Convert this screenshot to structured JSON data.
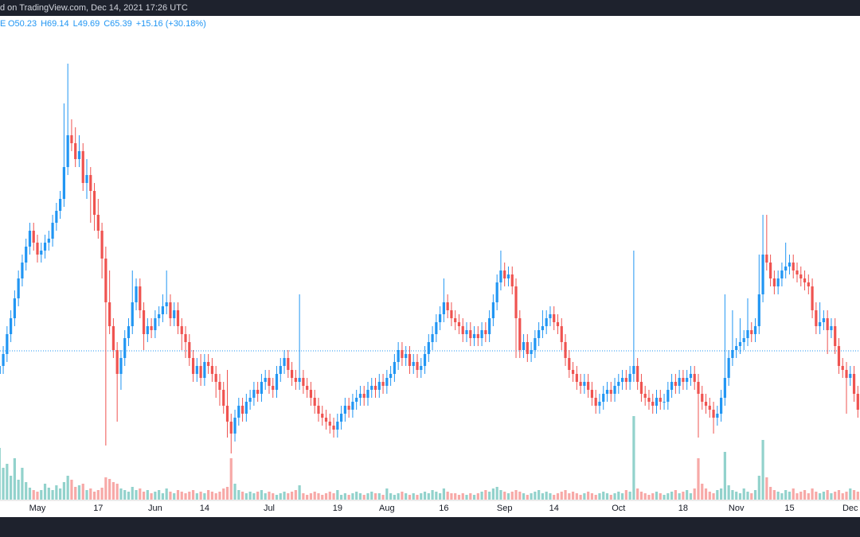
{
  "header": {
    "source": "d on TradingView.com, Dec 14, 2021 17:26 UTC",
    "symbol": "E",
    "ohlc": [
      "O50.23",
      "H69.14",
      "L49.69",
      "C65.39",
      "+15.16 (+30.18%)"
    ]
  },
  "chart_data": {
    "type": "candlestick",
    "x": [
      "2021-04-21",
      "2021-04-22",
      "2021-04-23",
      "2021-04-24",
      "2021-04-25",
      "2021-04-26",
      "2021-04-27",
      "2021-04-28",
      "2021-04-29",
      "2021-04-30",
      "2021-05-01",
      "2021-05-02",
      "2021-05-03",
      "2021-05-04",
      "2021-05-05",
      "2021-05-06",
      "2021-05-07",
      "2021-05-08",
      "2021-05-09",
      "2021-05-10",
      "2021-05-11",
      "2021-05-12",
      "2021-05-13",
      "2021-05-14",
      "2021-05-15",
      "2021-05-16",
      "2021-05-17",
      "2021-05-18",
      "2021-05-19",
      "2021-05-20",
      "2021-05-21",
      "2021-05-22",
      "2021-05-23",
      "2021-05-24",
      "2021-05-25",
      "2021-05-26",
      "2021-05-27",
      "2021-05-28",
      "2021-05-29",
      "2021-05-30",
      "2021-05-31",
      "2021-06-01",
      "2021-06-02",
      "2021-06-03",
      "2021-06-04",
      "2021-06-05",
      "2021-06-06",
      "2021-06-07",
      "2021-06-08",
      "2021-06-09",
      "2021-06-10",
      "2021-06-11",
      "2021-06-12",
      "2021-06-13",
      "2021-06-14",
      "2021-06-15",
      "2021-06-16",
      "2021-06-17",
      "2021-06-18",
      "2021-06-19",
      "2021-06-20",
      "2021-06-21",
      "2021-06-22",
      "2021-06-23",
      "2021-06-24",
      "2021-06-25",
      "2021-06-26",
      "2021-06-27",
      "2021-06-28",
      "2021-06-29",
      "2021-06-30",
      "2021-07-01",
      "2021-07-02",
      "2021-07-03",
      "2021-07-04",
      "2021-07-05",
      "2021-07-06",
      "2021-07-07",
      "2021-07-08",
      "2021-07-09",
      "2021-07-10",
      "2021-07-11",
      "2021-07-12",
      "2021-07-13",
      "2021-07-14",
      "2021-07-15",
      "2021-07-16",
      "2021-07-17",
      "2021-07-18",
      "2021-07-19",
      "2021-07-20",
      "2021-07-21",
      "2021-07-22",
      "2021-07-23",
      "2021-07-24",
      "2021-07-25",
      "2021-07-26",
      "2021-07-27",
      "2021-07-28",
      "2021-07-29",
      "2021-07-30",
      "2021-07-31",
      "2021-08-01",
      "2021-08-02",
      "2021-08-03",
      "2021-08-04",
      "2021-08-05",
      "2021-08-06",
      "2021-08-07",
      "2021-08-08",
      "2021-08-09",
      "2021-08-10",
      "2021-08-11",
      "2021-08-12",
      "2021-08-13",
      "2021-08-14",
      "2021-08-15",
      "2021-08-16",
      "2021-08-17",
      "2021-08-18",
      "2021-08-19",
      "2021-08-20",
      "2021-08-21",
      "2021-08-22",
      "2021-08-23",
      "2021-08-24",
      "2021-08-25",
      "2021-08-26",
      "2021-08-27",
      "2021-08-28",
      "2021-08-29",
      "2021-08-30",
      "2021-08-31",
      "2021-09-01",
      "2021-09-02",
      "2021-09-03",
      "2021-09-04",
      "2021-09-05",
      "2021-09-06",
      "2021-09-07",
      "2021-09-08",
      "2021-09-09",
      "2021-09-10",
      "2021-09-11",
      "2021-09-12",
      "2021-09-13",
      "2021-09-14",
      "2021-09-15",
      "2021-09-16",
      "2021-09-17",
      "2021-09-18",
      "2021-09-19",
      "2021-09-20",
      "2021-09-21",
      "2021-09-22",
      "2021-09-23",
      "2021-09-24",
      "2021-09-25",
      "2021-09-26",
      "2021-09-27",
      "2021-09-28",
      "2021-09-29",
      "2021-09-30",
      "2021-10-01",
      "2021-10-02",
      "2021-10-03",
      "2021-10-04",
      "2021-10-05",
      "2021-10-06",
      "2021-10-07",
      "2021-10-08",
      "2021-10-09",
      "2021-10-10",
      "2021-10-11",
      "2021-10-12",
      "2021-10-13",
      "2021-10-14",
      "2021-10-15",
      "2021-10-16",
      "2021-10-17",
      "2021-10-18",
      "2021-10-19",
      "2021-10-20",
      "2021-10-21",
      "2021-10-22",
      "2021-10-23",
      "2021-10-24",
      "2021-10-25",
      "2021-10-26",
      "2021-10-27",
      "2021-10-28",
      "2021-10-29",
      "2021-10-30",
      "2021-10-31",
      "2021-11-01",
      "2021-11-02",
      "2021-11-03",
      "2021-11-04",
      "2021-11-05",
      "2021-11-06",
      "2021-11-07",
      "2021-11-08",
      "2021-11-09",
      "2021-11-10",
      "2021-11-11",
      "2021-11-12",
      "2021-11-13",
      "2021-11-14",
      "2021-11-15",
      "2021-11-16",
      "2021-11-17",
      "2021-11-18",
      "2021-11-19",
      "2021-11-20",
      "2021-11-21",
      "2021-11-22",
      "2021-11-23",
      "2021-11-24",
      "2021-11-25",
      "2021-11-26",
      "2021-11-27",
      "2021-11-28",
      "2021-11-29",
      "2021-11-30",
      "2021-12-01",
      "2021-12-02",
      "2021-12-03"
    ],
    "open": [
      26,
      28,
      31,
      36,
      40,
      45,
      50,
      54,
      58,
      62,
      59,
      56,
      57,
      59,
      60,
      64,
      67,
      70,
      78,
      86,
      84,
      80,
      82,
      74,
      76,
      72,
      66,
      62,
      55,
      44,
      38,
      32,
      26,
      30,
      35,
      38,
      44,
      48,
      42,
      36,
      38,
      37,
      40,
      41,
      43,
      44,
      40,
      42,
      38,
      36,
      34,
      30,
      26,
      28,
      25,
      29,
      28,
      26,
      24,
      22,
      18,
      14,
      11,
      15,
      18,
      16,
      19,
      20,
      22,
      21,
      24,
      25,
      23,
      22,
      26,
      28,
      30,
      27,
      25,
      24,
      25,
      23,
      22,
      20,
      18,
      16,
      15,
      14,
      13,
      12,
      14,
      16,
      18,
      17,
      19,
      20,
      21,
      20,
      22,
      23,
      22,
      24,
      23,
      25,
      26,
      29,
      32,
      30,
      31,
      28,
      29,
      27,
      28,
      31,
      34,
      36,
      39,
      41,
      44,
      42,
      40,
      39,
      38,
      36,
      37,
      35,
      36,
      35,
      37,
      36,
      40,
      44,
      49,
      52,
      50,
      51,
      48,
      40,
      32,
      34,
      31,
      32,
      35,
      37,
      38,
      40,
      41,
      39,
      38,
      34,
      30,
      27,
      26,
      24,
      23,
      24,
      22,
      20,
      18,
      19,
      21,
      22,
      21,
      23,
      24,
      25,
      24,
      26,
      28,
      24,
      21,
      20,
      19,
      18,
      20,
      19,
      19,
      22,
      24,
      23,
      25,
      24,
      25,
      26,
      24,
      21,
      19,
      18,
      17,
      15,
      16,
      20,
      25,
      30,
      32,
      33,
      34,
      35,
      37,
      36,
      38,
      46,
      56,
      54,
      50,
      48,
      50,
      52,
      53,
      54,
      52,
      51,
      50,
      49,
      48,
      42,
      38,
      39,
      40,
      37,
      38,
      33,
      28,
      27,
      25,
      26,
      21
    ],
    "high": [
      30,
      33,
      38,
      42,
      47,
      52,
      56,
      60,
      64,
      64,
      61,
      59,
      61,
      62,
      66,
      69,
      72,
      94,
      104,
      90,
      88,
      86,
      84,
      80,
      78,
      74,
      70,
      64,
      58,
      52,
      40,
      34,
      32,
      37,
      40,
      52,
      50,
      50,
      44,
      40,
      40,
      42,
      43,
      46,
      52,
      46,
      44,
      44,
      40,
      38,
      36,
      32,
      30,
      31,
      31,
      31,
      30,
      28,
      26,
      24,
      27,
      16,
      17,
      20,
      20,
      21,
      22,
      24,
      24,
      26,
      27,
      27,
      25,
      28,
      30,
      32,
      32,
      29,
      27,
      46,
      27,
      25,
      24,
      22,
      20,
      18,
      17,
      16,
      15,
      16,
      18,
      20,
      20,
      21,
      22,
      23,
      23,
      24,
      25,
      25,
      26,
      26,
      27,
      28,
      31,
      34,
      34,
      33,
      33,
      31,
      31,
      30,
      33,
      36,
      38,
      41,
      43,
      50,
      46,
      44,
      42,
      41,
      40,
      39,
      39,
      38,
      38,
      39,
      39,
      42,
      46,
      51,
      57,
      54,
      53,
      53,
      50,
      42,
      36,
      36,
      34,
      37,
      39,
      42,
      42,
      43,
      43,
      41,
      40,
      36,
      32,
      29,
      28,
      26,
      26,
      26,
      24,
      22,
      21,
      23,
      24,
      24,
      25,
      26,
      27,
      27,
      28,
      57,
      30,
      26,
      23,
      22,
      21,
      22,
      22,
      21,
      24,
      26,
      26,
      27,
      27,
      27,
      28,
      28,
      26,
      23,
      21,
      20,
      19,
      18,
      22,
      46,
      32,
      42,
      35,
      40,
      37,
      45,
      39,
      40,
      56,
      66,
      66,
      56,
      52,
      52,
      54,
      59,
      56,
      56,
      54,
      53,
      52,
      51,
      50,
      44,
      44,
      42,
      42,
      40,
      40,
      35,
      30,
      29,
      28,
      28,
      23
    ],
    "low": [
      24,
      26,
      29,
      34,
      38,
      43,
      48,
      52,
      56,
      57,
      54,
      54,
      55,
      57,
      58,
      62,
      65,
      68,
      76,
      82,
      78,
      78,
      72,
      70,
      64,
      62,
      60,
      50,
      8,
      36,
      30,
      14,
      22,
      28,
      33,
      36,
      42,
      40,
      32,
      34,
      35,
      35,
      38,
      39,
      41,
      38,
      38,
      36,
      32,
      30,
      28,
      24,
      24,
      23,
      23,
      26,
      24,
      20,
      18,
      16,
      10,
      6,
      9,
      13,
      14,
      14,
      17,
      18,
      19,
      19,
      22,
      21,
      20,
      20,
      24,
      26,
      25,
      23,
      22,
      22,
      21,
      20,
      18,
      16,
      14,
      13,
      12,
      11,
      10,
      10,
      12,
      14,
      15,
      15,
      17,
      18,
      18,
      18,
      20,
      20,
      20,
      21,
      21,
      23,
      24,
      27,
      28,
      28,
      26,
      26,
      25,
      25,
      26,
      29,
      32,
      34,
      37,
      39,
      40,
      38,
      37,
      36,
      34,
      34,
      33,
      33,
      33,
      33,
      34,
      34,
      38,
      42,
      47,
      48,
      48,
      46,
      30,
      30,
      30,
      29,
      29,
      30,
      33,
      35,
      36,
      38,
      37,
      36,
      32,
      28,
      25,
      24,
      22,
      21,
      21,
      20,
      18,
      16,
      16,
      17,
      19,
      19,
      19,
      21,
      22,
      22,
      22,
      24,
      22,
      19,
      18,
      17,
      16,
      16,
      17,
      17,
      17,
      20,
      21,
      21,
      22,
      22,
      23,
      22,
      10,
      17,
      16,
      15,
      11,
      13,
      14,
      18,
      23,
      28,
      30,
      31,
      32,
      33,
      34,
      34,
      36,
      44,
      52,
      48,
      46,
      46,
      48,
      50,
      51,
      50,
      49,
      48,
      47,
      46,
      40,
      36,
      36,
      37,
      31,
      35,
      31,
      26,
      25,
      16,
      23,
      19,
      15
    ],
    "close": [
      28,
      31,
      36,
      40,
      45,
      50,
      54,
      58,
      62,
      59,
      56,
      57,
      59,
      60,
      64,
      67,
      70,
      78,
      86,
      84,
      80,
      82,
      74,
      76,
      72,
      66,
      62,
      55,
      44,
      38,
      32,
      26,
      30,
      35,
      38,
      44,
      48,
      42,
      36,
      38,
      37,
      40,
      41,
      43,
      44,
      40,
      42,
      38,
      36,
      34,
      30,
      26,
      28,
      25,
      29,
      28,
      26,
      24,
      22,
      18,
      14,
      11,
      15,
      18,
      16,
      19,
      20,
      22,
      21,
      24,
      25,
      23,
      22,
      26,
      28,
      30,
      27,
      25,
      24,
      25,
      23,
      22,
      20,
      18,
      16,
      15,
      14,
      13,
      12,
      14,
      16,
      18,
      17,
      19,
      20,
      21,
      20,
      22,
      23,
      22,
      24,
      23,
      25,
      26,
      29,
      32,
      30,
      31,
      28,
      29,
      27,
      28,
      31,
      34,
      36,
      39,
      41,
      44,
      42,
      40,
      39,
      38,
      36,
      37,
      35,
      36,
      35,
      37,
      36,
      40,
      44,
      49,
      52,
      50,
      51,
      48,
      40,
      32,
      34,
      31,
      32,
      35,
      37,
      38,
      40,
      41,
      39,
      38,
      34,
      30,
      27,
      26,
      24,
      23,
      24,
      22,
      20,
      18,
      19,
      21,
      22,
      21,
      23,
      24,
      25,
      24,
      26,
      28,
      24,
      21,
      20,
      19,
      18,
      20,
      19,
      19,
      22,
      24,
      23,
      25,
      24,
      25,
      26,
      24,
      21,
      19,
      18,
      17,
      15,
      16,
      20,
      25,
      30,
      32,
      33,
      34,
      35,
      37,
      36,
      38,
      46,
      56,
      54,
      50,
      48,
      50,
      52,
      53,
      54,
      52,
      51,
      50,
      49,
      48,
      42,
      38,
      39,
      40,
      37,
      38,
      33,
      28,
      27,
      25,
      26,
      21,
      17
    ],
    "volume": [
      65,
      40,
      45,
      30,
      52,
      25,
      40,
      22,
      15,
      12,
      10,
      12,
      20,
      15,
      12,
      18,
      14,
      22,
      30,
      25,
      16,
      18,
      20,
      12,
      14,
      10,
      12,
      15,
      28,
      26,
      22,
      20,
      14,
      12,
      10,
      16,
      12,
      14,
      10,
      12,
      8,
      10,
      12,
      8,
      14,
      10,
      8,
      12,
      10,
      8,
      10,
      12,
      8,
      10,
      8,
      12,
      10,
      8,
      10,
      14,
      16,
      52,
      20,
      12,
      10,
      8,
      10,
      8,
      10,
      12,
      8,
      10,
      8,
      6,
      8,
      10,
      8,
      10,
      12,
      18,
      8,
      6,
      8,
      10,
      8,
      6,
      8,
      10,
      8,
      12,
      6,
      8,
      6,
      8,
      10,
      8,
      6,
      8,
      10,
      8,
      8,
      6,
      14,
      8,
      6,
      8,
      10,
      8,
      6,
      8,
      6,
      8,
      10,
      8,
      12,
      10,
      8,
      14,
      10,
      8,
      8,
      6,
      8,
      6,
      8,
      6,
      8,
      10,
      12,
      10,
      14,
      16,
      12,
      10,
      8,
      10,
      12,
      10,
      8,
      6,
      8,
      10,
      12,
      8,
      10,
      8,
      6,
      8,
      10,
      12,
      8,
      10,
      8,
      6,
      8,
      10,
      8,
      6,
      8,
      10,
      8,
      6,
      8,
      10,
      8,
      12,
      10,
      105,
      14,
      10,
      8,
      6,
      8,
      10,
      8,
      6,
      8,
      10,
      12,
      8,
      10,
      12,
      8,
      14,
      52,
      20,
      14,
      10,
      8,
      12,
      14,
      60,
      18,
      12,
      10,
      8,
      14,
      10,
      8,
      12,
      30,
      75,
      28,
      16,
      12,
      10,
      8,
      12,
      10,
      14,
      8,
      10,
      12,
      8,
      14,
      10,
      8,
      10,
      12,
      8,
      10,
      12,
      8,
      10,
      14,
      12,
      10
    ],
    "up_color": "#2196f3",
    "down_color": "#ef5350",
    "volume_up_color": "#26a69a",
    "volume_down_color": "#ef5350",
    "ylim": [
      -6,
      116
    ],
    "volume_lim": [
      0,
      150
    ],
    "price_line": 31.8,
    "xticks": [
      {
        "value": "2021-05-01",
        "label": "May"
      },
      {
        "value": "2021-05-17",
        "label": "17"
      },
      {
        "value": "2021-06-01",
        "label": "Jun"
      },
      {
        "value": "2021-06-14",
        "label": "14"
      },
      {
        "value": "2021-07-01",
        "label": "Jul"
      },
      {
        "value": "2021-07-19",
        "label": "19"
      },
      {
        "value": "2021-08-01",
        "label": "Aug"
      },
      {
        "value": "2021-08-16",
        "label": "16"
      },
      {
        "value": "2021-09-01",
        "label": "Sep"
      },
      {
        "value": "2021-09-14",
        "label": "14"
      },
      {
        "value": "2021-10-01",
        "label": "Oct"
      },
      {
        "value": "2021-10-18",
        "label": "18"
      },
      {
        "value": "2021-11-01",
        "label": "Nov"
      },
      {
        "value": "2021-11-15",
        "label": "15"
      },
      {
        "value": "2021-12-01",
        "label": "Dec"
      }
    ]
  }
}
